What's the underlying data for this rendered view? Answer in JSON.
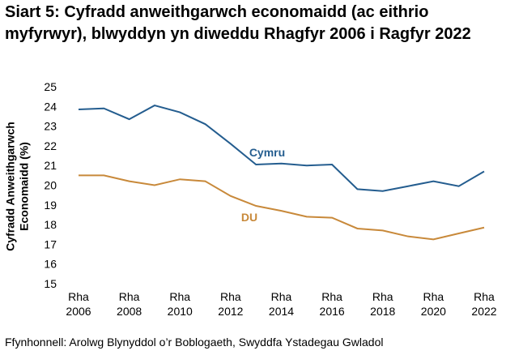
{
  "chart_data": {
    "type": "line",
    "title": "Siart 5: Cyfradd anweithgarwch economaidd (ac eithrio myfyrwyr), blwyddyn yn diweddu Rhagfyr 2006 i Ragfyr 2022",
    "y_axis_label": "Cyfradd Anweithgarwch Economaidd (%)",
    "source": "Ffynhonnell: Arolwg Blynyddol o’r Boblogaeth, Swyddfa Ystadegau Gwladol",
    "categories": [
      "Rha 2006",
      null,
      "Rha 2008",
      null,
      "Rha 2010",
      null,
      "Rha 2012",
      null,
      "Rha 2014",
      null,
      "Rha 2016",
      null,
      "Rha 2018",
      null,
      "Rha 2020",
      null,
      "Rha 2022"
    ],
    "series": [
      {
        "name": "Cymru",
        "color": "#245d8f",
        "values": [
          23.85,
          23.9,
          23.35,
          24.05,
          23.7,
          23.1,
          22.1,
          21.05,
          21.1,
          21.0,
          21.05,
          19.8,
          19.7,
          19.95,
          20.2,
          19.95,
          20.7
        ]
      },
      {
        "name": "DU",
        "color": "#c8893a",
        "values": [
          20.5,
          20.5,
          20.2,
          20.0,
          20.3,
          20.2,
          19.45,
          18.95,
          18.7,
          18.4,
          18.35,
          17.8,
          17.7,
          17.4,
          17.25,
          17.55,
          17.85
        ]
      }
    ],
    "ylim": [
      15,
      25
    ],
    "yticks": [
      15,
      16,
      17,
      18,
      19,
      20,
      21,
      22,
      23,
      24,
      25
    ],
    "grid": false
  }
}
